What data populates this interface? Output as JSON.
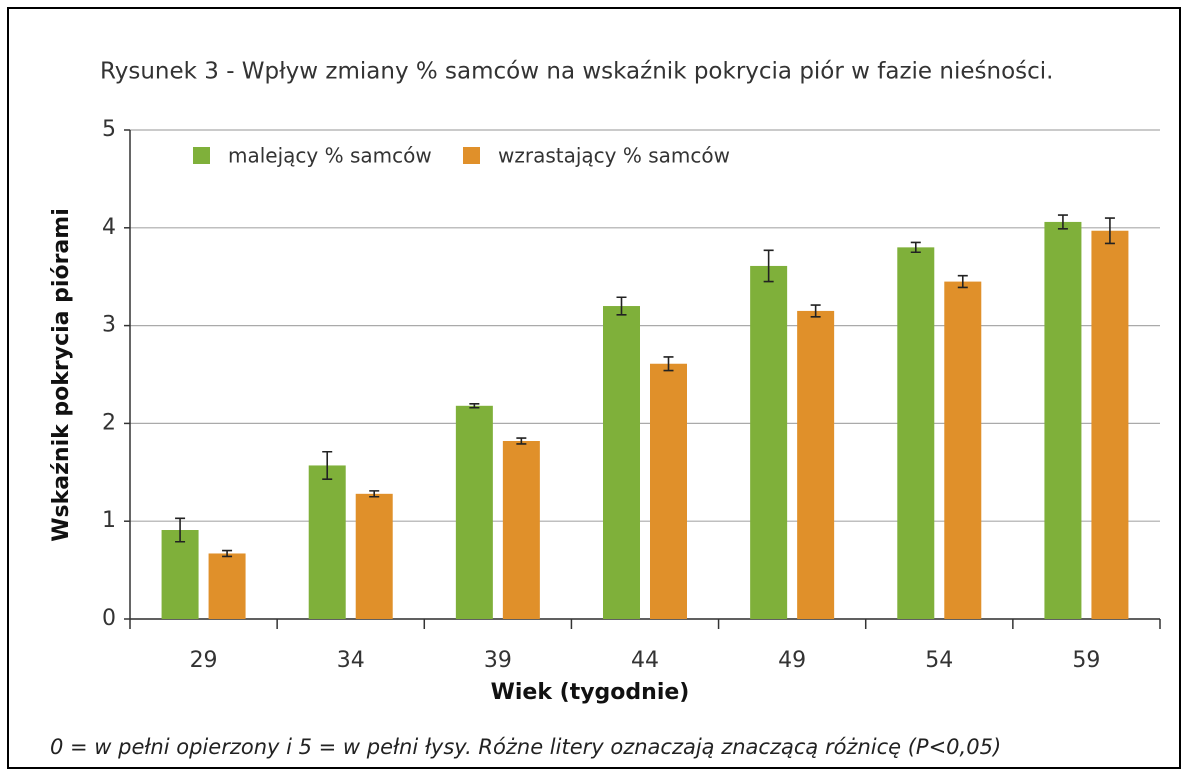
{
  "chart_data": {
    "type": "bar",
    "title": "Rysunek 3 - Wpływ zmiany % samców na wskaźnik pokrycia piór w fazie nieśności.",
    "x_label": "Wiek (tygodnie)",
    "y_label": "Wskaźnik pokrycia piórami",
    "footnote": "0 = w pełni opierzony i 5 = w pełni łysy. Różne litery oznaczają znaczącą różnicę (P<0,05)",
    "categories": [
      "29",
      "34",
      "39",
      "44",
      "49",
      "54",
      "59"
    ],
    "series": [
      {
        "name": "malejący % samców",
        "color": "#7fb03a",
        "values": [
          0.91,
          1.57,
          2.18,
          3.2,
          3.61,
          3.8,
          4.06
        ],
        "errors": [
          0.12,
          0.14,
          0.02,
          0.09,
          0.16,
          0.05,
          0.07
        ]
      },
      {
        "name": "wzrastający % samców",
        "color": "#e0902a",
        "values": [
          0.67,
          1.28,
          1.82,
          2.61,
          3.15,
          3.45,
          3.97
        ],
        "errors": [
          0.03,
          0.03,
          0.03,
          0.07,
          0.06,
          0.06,
          0.13
        ]
      }
    ],
    "ylim": [
      0,
      5
    ],
    "yticks": [
      0,
      1,
      2,
      3,
      4,
      5
    ],
    "grid": true,
    "legend": "top-left"
  }
}
